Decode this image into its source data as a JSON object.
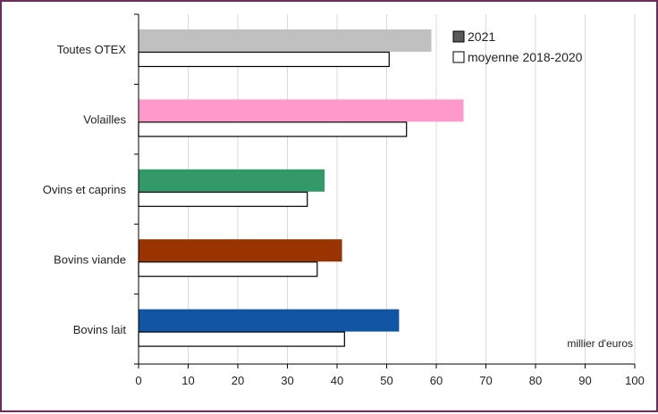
{
  "chart_data": {
    "type": "bar",
    "orientation": "horizontal",
    "categories": [
      "Toutes OTEX",
      "Volailles",
      "Ovins et caprins",
      "Bovins viande",
      "Bovins lait"
    ],
    "series": [
      {
        "name": "2021",
        "values": [
          59,
          65.5,
          37.5,
          41,
          52.5
        ],
        "colors": [
          "#c0c0c0",
          "#ff99cc",
          "#339966",
          "#993300",
          "#1155a5"
        ]
      },
      {
        "name": "moyenne 2018-2020",
        "values": [
          50.5,
          54,
          34,
          36,
          41.5
        ],
        "colors": [
          "#ffffff",
          "#ffffff",
          "#ffffff",
          "#ffffff",
          "#ffffff"
        ]
      }
    ],
    "xlim": [
      0,
      100
    ],
    "xticks": [
      "0",
      "10",
      "20",
      "30",
      "40",
      "50",
      "60",
      "70",
      "80",
      "90",
      "100"
    ],
    "unit_label": "millier d'euros",
    "grid": "vertical",
    "legend_position": "top-right",
    "colors": {
      "frame": "#6b2d5c",
      "grid": "#d9d9d9",
      "axis": "#000000",
      "legend_2021": "#595959"
    }
  }
}
